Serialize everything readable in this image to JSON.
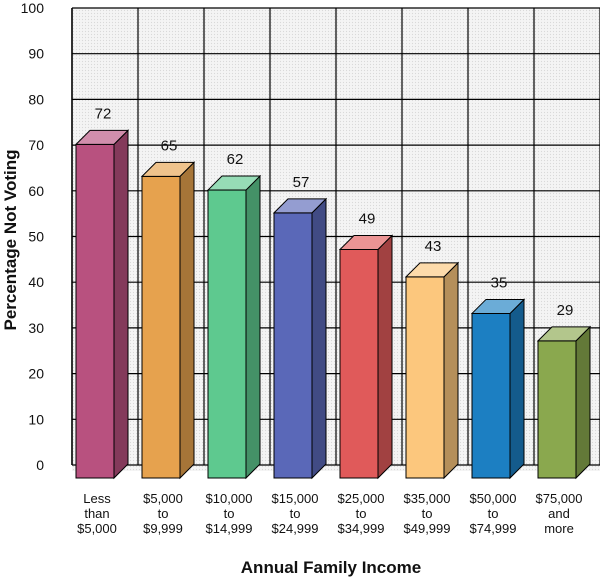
{
  "chart_data": {
    "type": "bar",
    "xlabel": "Annual Family Income",
    "ylabel": "Percentage Not Voting",
    "ylim": [
      0,
      100
    ],
    "yticks": [
      0,
      10,
      20,
      30,
      40,
      50,
      60,
      70,
      80,
      90,
      100
    ],
    "grid": true,
    "categories": [
      [
        "Less",
        "than",
        "$5,000"
      ],
      [
        "$5,000",
        "to",
        "$9,999"
      ],
      [
        "$10,000",
        "to",
        "$14,999"
      ],
      [
        "$15,000",
        "to",
        "$24,999"
      ],
      [
        "$25,000",
        "to",
        "$34,999"
      ],
      [
        "$35,000",
        "to",
        "$49,999"
      ],
      [
        "$50,000",
        "to",
        "$74,999"
      ],
      [
        "$75,000",
        "and",
        "more"
      ]
    ],
    "values": [
      72,
      65,
      62,
      57,
      49,
      43,
      35,
      29
    ],
    "colors": [
      "#b8517f",
      "#e6a24e",
      "#5ec98f",
      "#5a68b8",
      "#e05a5a",
      "#fcc77d",
      "#1c7fc2",
      "#8aa84e"
    ]
  }
}
